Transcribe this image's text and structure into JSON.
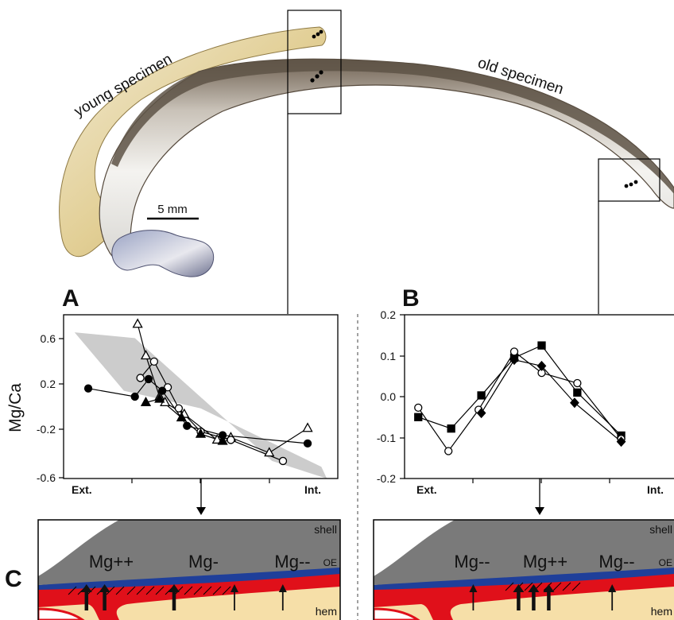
{
  "photo": {
    "label_young": "young specimen",
    "label_old": "old specimen",
    "scale_bar": "5 mm"
  },
  "panels": {
    "A": "A",
    "B": "B",
    "C": "C"
  },
  "colors": {
    "shell": "#7a7a7a",
    "oe": "#1f3f9a",
    "mantle": "#e0101a",
    "hem": "#f6dfa8",
    "envelope": "#cccccc"
  },
  "chart_data": [
    {
      "type": "scatter",
      "panel": "A",
      "ylabel": "Mg/Ca",
      "ylim": [
        -0.6,
        0.8
      ],
      "yticks": [
        "0.6",
        "0.2",
        "-0.2",
        "-0.6"
      ],
      "x_left_label": "Ext.",
      "x_right_label": "Int.",
      "envelope": [
        [
          0.4,
          0.65
        ],
        [
          2.6,
          0.6
        ],
        [
          7.6,
          -0.45
        ],
        [
          9.6,
          -0.6
        ],
        [
          9.4,
          -0.5
        ],
        [
          5.0,
          0.0
        ],
        [
          2.2,
          0.15
        ]
      ],
      "series": [
        {
          "marker": "open-triangle",
          "points": [
            [
              2.7,
              0.72
            ],
            [
              3.0,
              0.45
            ],
            [
              3.5,
              0.1
            ],
            [
              3.7,
              0.05
            ],
            [
              4.4,
              -0.05
            ],
            [
              5.6,
              -0.27
            ],
            [
              6.1,
              -0.25
            ],
            [
              7.5,
              -0.38
            ],
            [
              8.9,
              -0.17
            ]
          ]
        },
        {
          "marker": "open-circle",
          "points": [
            [
              2.8,
              0.26
            ],
            [
              3.3,
              0.4
            ],
            [
              3.8,
              0.18
            ],
            [
              4.2,
              0.0
            ],
            [
              5.0,
              -0.2
            ],
            [
              6.1,
              -0.27
            ],
            [
              8.0,
              -0.45
            ]
          ]
        },
        {
          "marker": "filled-circle",
          "points": [
            [
              0.9,
              0.17
            ],
            [
              2.6,
              0.1
            ],
            [
              3.1,
              0.25
            ],
            [
              3.6,
              0.15
            ],
            [
              4.5,
              -0.15
            ],
            [
              5.8,
              -0.23
            ],
            [
              8.9,
              -0.3
            ]
          ]
        },
        {
          "marker": "filled-triangle",
          "points": [
            [
              3.0,
              0.05
            ],
            [
              3.5,
              0.08
            ],
            [
              4.3,
              -0.08
            ],
            [
              5.0,
              -0.22
            ],
            [
              5.8,
              -0.28
            ]
          ]
        }
      ]
    },
    {
      "type": "scatter",
      "panel": "B",
      "ylim": [
        -0.2,
        0.2
      ],
      "yticks": [
        "0.2",
        "0.1",
        "0.0",
        "-0.1",
        "-0.2"
      ],
      "x_left_label": "Ext.",
      "x_right_label": "Int.",
      "series": [
        {
          "marker": "filled-square",
          "points": [
            [
              0.5,
              -0.05
            ],
            [
              1.7,
              -0.078
            ],
            [
              2.8,
              0.003
            ],
            [
              4.0,
              0.095
            ],
            [
              5.0,
              0.125
            ],
            [
              6.3,
              0.01
            ],
            [
              7.9,
              -0.095
            ]
          ]
        },
        {
          "marker": "open-circle",
          "points": [
            [
              0.5,
              -0.027
            ],
            [
              1.6,
              -0.133
            ],
            [
              2.7,
              -0.032
            ],
            [
              4.0,
              0.11
            ],
            [
              5.0,
              0.058
            ],
            [
              6.3,
              0.033
            ],
            [
              7.9,
              -0.103
            ]
          ]
        },
        {
          "marker": "filled-diamond",
          "points": [
            [
              2.8,
              -0.04
            ],
            [
              4.0,
              0.09
            ],
            [
              5.0,
              0.075
            ],
            [
              6.2,
              -0.015
            ],
            [
              7.9,
              -0.11
            ]
          ]
        }
      ]
    }
  ],
  "diagram_left": {
    "shell": "shell",
    "oe": "OE",
    "hem": "hem",
    "labels": [
      "Mg++",
      "Mg-",
      "Mg--"
    ],
    "arrows": [
      {
        "pos": 0.16,
        "weight": "bold"
      },
      {
        "pos": 0.22,
        "weight": "bold"
      },
      {
        "pos": 0.45,
        "weight": "bold"
      },
      {
        "pos": 0.65,
        "weight": "thin"
      },
      {
        "pos": 0.81,
        "weight": "thin"
      }
    ]
  },
  "diagram_right": {
    "shell": "shell",
    "oe": "OE",
    "hem": "hem",
    "labels": [
      "Mg--",
      "Mg++",
      "Mg--"
    ],
    "arrows": [
      {
        "pos": 0.33,
        "weight": "thin"
      },
      {
        "pos": 0.48,
        "weight": "bold"
      },
      {
        "pos": 0.53,
        "weight": "bold"
      },
      {
        "pos": 0.58,
        "weight": "bold"
      },
      {
        "pos": 0.79,
        "weight": "thin"
      }
    ]
  }
}
